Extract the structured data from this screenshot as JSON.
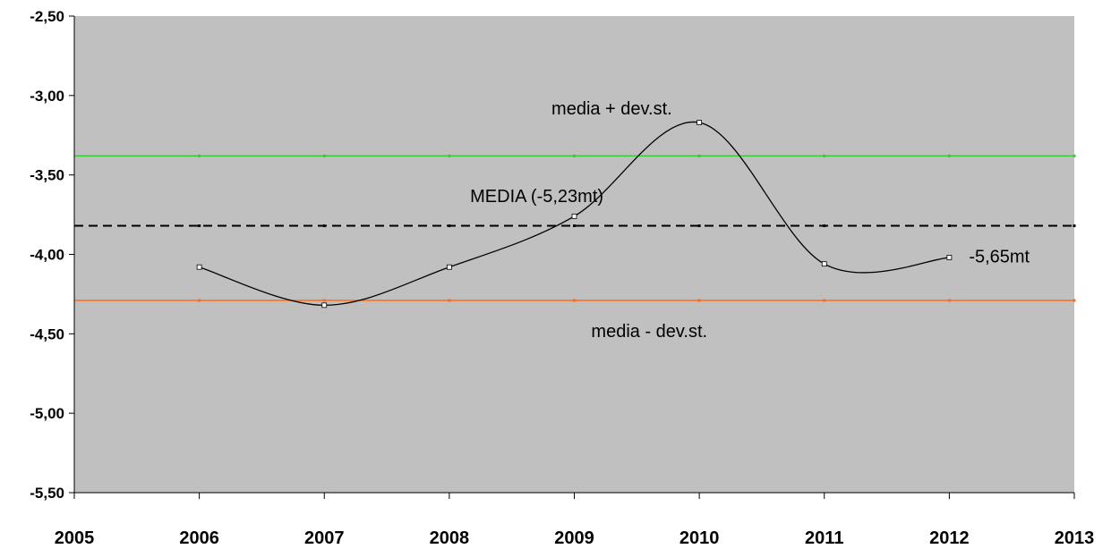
{
  "chart_data": {
    "type": "line",
    "x": [
      2006,
      2007,
      2008,
      2009,
      2010,
      2011,
      2012
    ],
    "series": [
      {
        "values": [
          -4.08,
          -4.32,
          -4.08,
          -3.76,
          -3.17,
          -4.06,
          -4.02
        ],
        "color": "#000000",
        "smooth": true
      }
    ],
    "reference_lines": [
      {
        "value": -3.38,
        "color": "#33cc33",
        "style": "solid"
      },
      {
        "value": -3.82,
        "color": "#000000",
        "style": "dashed"
      },
      {
        "value": -4.29,
        "color": "#ff6a1a",
        "style": "solid"
      }
    ],
    "annotations": [
      {
        "text": "media + dev.st.",
        "x": 2009.3,
        "y": -3.12
      },
      {
        "text": "MEDIA (-5,23mt)",
        "x": 2008.7,
        "y": -3.67
      },
      {
        "text": "media - dev.st.",
        "x": 2009.6,
        "y": -4.52
      },
      {
        "text": "-5,65mt",
        "x": 2012.4,
        "y": -4.05
      }
    ],
    "xlim": [
      2005,
      2013
    ],
    "ylim": [
      -5.5,
      -2.5
    ],
    "xticks": [
      2005,
      2006,
      2007,
      2008,
      2009,
      2010,
      2011,
      2012,
      2013
    ],
    "xtick_labels": [
      "2005",
      "2006",
      "2007",
      "2008",
      "2009",
      "2010",
      "2011",
      "2012",
      "2013"
    ],
    "yticks": [
      -2.5,
      -3.0,
      -3.5,
      -4.0,
      -4.5,
      -5.0,
      -5.5
    ],
    "ytick_labels": [
      "-2,50",
      "-3,00",
      "-3,50",
      "-4,00",
      "-4,50",
      "-5,00",
      "-5,50"
    ],
    "plot_background": "#c0c0c0",
    "grid": false,
    "legend": "none"
  }
}
